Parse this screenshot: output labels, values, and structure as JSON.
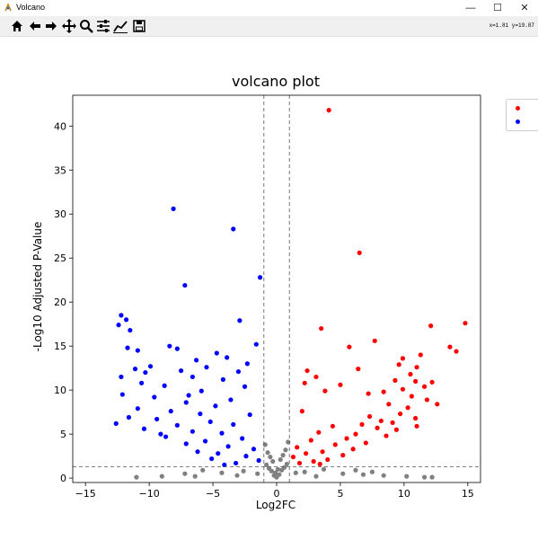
{
  "window": {
    "title": "Volcano"
  },
  "toolbar": {
    "tools": [
      {
        "name": "home-icon"
      },
      {
        "name": "back-icon"
      },
      {
        "name": "forward-icon"
      },
      {
        "name": "pan-icon"
      },
      {
        "name": "zoom-icon"
      },
      {
        "name": "configure-subplots-icon"
      },
      {
        "name": "edit-axis-icon"
      },
      {
        "name": "save-icon"
      }
    ],
    "coords": "x=1.81  y=19.87"
  },
  "colors": {
    "up": "#ff0000",
    "down": "#0000ff",
    "ns": "#808080"
  },
  "chart_data": {
    "type": "scatter",
    "title": "volcano plot",
    "xlabel": "Log2FC",
    "ylabel": "-Log10 Adjusted P-Value",
    "xlim": [
      -16,
      16
    ],
    "ylim": [
      -0.5,
      43.5
    ],
    "xticks": [
      -15,
      -10,
      -5,
      0,
      5,
      10,
      15
    ],
    "yticks": [
      0,
      5,
      10,
      15,
      20,
      25,
      30,
      35,
      40
    ],
    "thresholds": {
      "x": [
        -1,
        1
      ],
      "y": 1.3
    },
    "legend": "upper right (clipped)",
    "series": [
      {
        "color": "red",
        "points": [
          [
            4.1,
            41.8
          ],
          [
            6.5,
            25.6
          ],
          [
            14.8,
            17.6
          ],
          [
            12.1,
            17.3
          ],
          [
            3.5,
            17.0
          ],
          [
            7.7,
            15.6
          ],
          [
            5.7,
            14.9
          ],
          [
            13.6,
            14.9
          ],
          [
            14.1,
            14.4
          ],
          [
            11.3,
            14.0
          ],
          [
            9.9,
            13.6
          ],
          [
            9.6,
            12.9
          ],
          [
            11.0,
            12.6
          ],
          [
            6.4,
            12.4
          ],
          [
            2.4,
            12.2
          ],
          [
            10.5,
            11.8
          ],
          [
            3.1,
            11.5
          ],
          [
            9.3,
            11.1
          ],
          [
            10.9,
            11.0
          ],
          [
            12.2,
            10.9
          ],
          [
            2.2,
            10.8
          ],
          [
            5.0,
            10.6
          ],
          [
            11.6,
            10.4
          ],
          [
            9.9,
            10.1
          ],
          [
            3.8,
            9.9
          ],
          [
            7.2,
            9.6
          ],
          [
            10.6,
            9.3
          ],
          [
            11.8,
            8.9
          ],
          [
            8.8,
            8.4
          ],
          [
            10.3,
            8.0
          ],
          [
            2.0,
            7.6
          ],
          [
            9.7,
            7.3
          ],
          [
            7.3,
            7.0
          ],
          [
            10.9,
            6.8
          ],
          [
            8.2,
            6.5
          ],
          [
            9.1,
            6.3
          ],
          [
            6.7,
            6.1
          ],
          [
            4.4,
            5.9
          ],
          [
            7.9,
            5.7
          ],
          [
            9.4,
            5.5
          ],
          [
            3.3,
            5.2
          ],
          [
            6.2,
            5.0
          ],
          [
            8.6,
            4.8
          ],
          [
            5.5,
            4.5
          ],
          [
            2.7,
            4.3
          ],
          [
            7.0,
            4.0
          ],
          [
            4.6,
            3.8
          ],
          [
            1.6,
            3.5
          ],
          [
            6.0,
            3.3
          ],
          [
            3.6,
            3.0
          ],
          [
            2.3,
            2.8
          ],
          [
            5.2,
            2.6
          ],
          [
            1.3,
            2.4
          ],
          [
            4.0,
            2.1
          ],
          [
            2.9,
            1.9
          ],
          [
            1.8,
            1.7
          ],
          [
            3.4,
            1.6
          ],
          [
            11.0,
            5.9
          ],
          [
            12.6,
            8.4
          ],
          [
            8.4,
            9.8
          ]
        ]
      },
      {
        "color": "blue",
        "points": [
          [
            -8.1,
            30.6
          ],
          [
            -3.4,
            28.3
          ],
          [
            -7.2,
            21.9
          ],
          [
            -1.3,
            22.8
          ],
          [
            -12.2,
            18.5
          ],
          [
            -11.8,
            18.0
          ],
          [
            -2.9,
            17.9
          ],
          [
            -12.4,
            17.4
          ],
          [
            -11.5,
            16.8
          ],
          [
            -8.4,
            15.0
          ],
          [
            -1.6,
            15.2
          ],
          [
            -11.7,
            14.8
          ],
          [
            -7.8,
            14.7
          ],
          [
            -4.7,
            14.2
          ],
          [
            -10.9,
            14.5
          ],
          [
            -3.9,
            13.7
          ],
          [
            -6.3,
            13.4
          ],
          [
            -2.3,
            13.0
          ],
          [
            -9.9,
            12.7
          ],
          [
            -5.5,
            12.6
          ],
          [
            -11.1,
            12.4
          ],
          [
            -7.5,
            12.2
          ],
          [
            -3.0,
            12.1
          ],
          [
            -10.3,
            12.0
          ],
          [
            -12.2,
            11.5
          ],
          [
            -6.6,
            11.5
          ],
          [
            -4.2,
            11.2
          ],
          [
            -10.6,
            10.8
          ],
          [
            -8.8,
            10.5
          ],
          [
            -2.5,
            10.4
          ],
          [
            -12.1,
            9.5
          ],
          [
            -5.9,
            9.9
          ],
          [
            -9.6,
            9.2
          ],
          [
            -7.1,
            8.6
          ],
          [
            -3.6,
            8.9
          ],
          [
            -10.9,
            7.9
          ],
          [
            -4.8,
            8.2
          ],
          [
            -8.3,
            7.6
          ],
          [
            -6.0,
            7.3
          ],
          [
            -2.1,
            7.2
          ],
          [
            -12.6,
            6.2
          ],
          [
            -9.4,
            6.7
          ],
          [
            -5.2,
            6.4
          ],
          [
            -7.8,
            6.0
          ],
          [
            -3.4,
            6.1
          ],
          [
            -10.4,
            5.6
          ],
          [
            -6.6,
            5.3
          ],
          [
            -4.3,
            5.1
          ],
          [
            -8.7,
            4.7
          ],
          [
            -2.7,
            4.5
          ],
          [
            -5.6,
            4.2
          ],
          [
            -7.1,
            3.9
          ],
          [
            -3.8,
            3.6
          ],
          [
            -1.8,
            3.3
          ],
          [
            -6.2,
            3.0
          ],
          [
            -4.6,
            2.8
          ],
          [
            -2.4,
            2.5
          ],
          [
            -5.1,
            2.2
          ],
          [
            -1.4,
            2.0
          ],
          [
            -3.2,
            1.7
          ],
          [
            -4.1,
            1.5
          ],
          [
            -9.1,
            5.0
          ],
          [
            -11.6,
            6.9
          ],
          [
            -6.9,
            9.4
          ]
        ]
      },
      {
        "color": "gray",
        "points": [
          [
            0.0,
            0.1
          ],
          [
            0.2,
            0.4
          ],
          [
            -0.2,
            0.3
          ],
          [
            0.4,
            0.9
          ],
          [
            -0.4,
            0.8
          ],
          [
            0.6,
            1.2
          ],
          [
            -0.6,
            1.1
          ],
          [
            0.8,
            1.6
          ],
          [
            -0.8,
            1.5
          ],
          [
            0.1,
            1.0
          ],
          [
            -0.1,
            0.6
          ],
          [
            0.3,
            2.1
          ],
          [
            -0.3,
            1.9
          ],
          [
            0.5,
            2.6
          ],
          [
            -0.5,
            2.4
          ],
          [
            0.7,
            3.2
          ],
          [
            -0.7,
            2.9
          ],
          [
            0.9,
            4.1
          ],
          [
            -0.9,
            3.8
          ],
          [
            -11.0,
            0.1
          ],
          [
            -9.0,
            0.2
          ],
          [
            -7.2,
            0.5
          ],
          [
            -5.8,
            0.9
          ],
          [
            -4.3,
            0.6
          ],
          [
            -2.6,
            0.8
          ],
          [
            2.2,
            0.7
          ],
          [
            3.7,
            1.0
          ],
          [
            5.2,
            0.5
          ],
          [
            6.8,
            0.4
          ],
          [
            8.4,
            0.3
          ],
          [
            10.2,
            0.2
          ],
          [
            11.6,
            0.1
          ],
          [
            12.2,
            0.1
          ],
          [
            -3.1,
            0.3
          ],
          [
            3.1,
            0.2
          ],
          [
            -1.5,
            0.5
          ],
          [
            1.5,
            0.6
          ],
          [
            -6.4,
            0.2
          ],
          [
            6.2,
            0.9
          ],
          [
            7.5,
            0.7
          ]
        ]
      }
    ]
  }
}
